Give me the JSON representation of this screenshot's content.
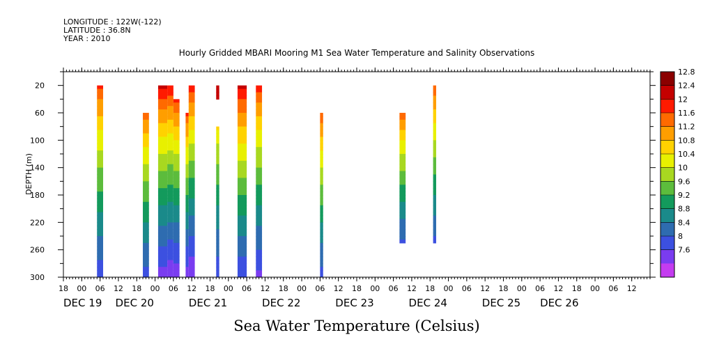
{
  "header": {
    "longitude": "LONGITUDE : 122W(-122)",
    "latitude": "LATITUDE : 36.8N",
    "year": "YEAR : 2010"
  },
  "chart_data": {
    "type": "heatmap",
    "title": "Hourly Gridded MBARI Mooring M1 Sea Water Temperature and Salinity Observations",
    "xlabel": "Sea Water Temperature (Celsius)",
    "ylabel": "DEPTH (m)",
    "x_units": "hours since DEC 19 00:00",
    "xlim": [
      -6,
      186
    ],
    "ylim": [
      300,
      0
    ],
    "y_ticks": [
      20,
      60,
      100,
      140,
      180,
      220,
      260,
      300
    ],
    "hour_ticks": [
      {
        "h": -6,
        "label": "18"
      },
      {
        "h": 0,
        "label": "00"
      },
      {
        "h": 6,
        "label": "06"
      },
      {
        "h": 12,
        "label": "12"
      },
      {
        "h": 18,
        "label": "18"
      },
      {
        "h": 24,
        "label": "00"
      },
      {
        "h": 30,
        "label": "06"
      },
      {
        "h": 36,
        "label": "12"
      },
      {
        "h": 42,
        "label": "18"
      },
      {
        "h": 48,
        "label": "00"
      },
      {
        "h": 54,
        "label": "06"
      },
      {
        "h": 60,
        "label": "12"
      },
      {
        "h": 66,
        "label": "18"
      },
      {
        "h": 72,
        "label": "00"
      },
      {
        "h": 78,
        "label": "06"
      },
      {
        "h": 84,
        "label": "12"
      },
      {
        "h": 90,
        "label": "18"
      },
      {
        "h": 96,
        "label": "00"
      },
      {
        "h": 102,
        "label": "06"
      },
      {
        "h": 108,
        "label": "12"
      },
      {
        "h": 114,
        "label": "18"
      },
      {
        "h": 120,
        "label": "00"
      },
      {
        "h": 126,
        "label": "06"
      },
      {
        "h": 132,
        "label": "12"
      },
      {
        "h": 138,
        "label": "18"
      },
      {
        "h": 144,
        "label": "00"
      },
      {
        "h": 150,
        "label": "06"
      },
      {
        "h": 156,
        "label": "12"
      },
      {
        "h": 162,
        "label": "18"
      },
      {
        "h": 168,
        "label": "00"
      },
      {
        "h": 174,
        "label": "06"
      },
      {
        "h": 180,
        "label": "12"
      }
    ],
    "day_labels": [
      {
        "h": -6,
        "label": "DEC 19"
      },
      {
        "h": 11,
        "label": "DEC 20"
      },
      {
        "h": 35,
        "label": "DEC 21"
      },
      {
        "h": 59,
        "label": "DEC 22"
      },
      {
        "h": 83,
        "label": "DEC 23"
      },
      {
        "h": 107,
        "label": "DEC 24"
      },
      {
        "h": 131,
        "label": "DEC 25"
      },
      {
        "h": 150,
        "label": "DEC 26"
      }
    ],
    "colorbar": {
      "levels": [
        "12.8",
        "12.4",
        "12",
        "11.6",
        "11.2",
        "10.8",
        "10.4",
        "10",
        "9.6",
        "9.2",
        "8.8",
        "8.4",
        "8",
        "7.6"
      ],
      "colors": [
        "#8b0000",
        "#c40000",
        "#ff1a00",
        "#ff6a00",
        "#ff9e00",
        "#ffd200",
        "#e8f000",
        "#a8d820",
        "#5cbc3c",
        "#139a5c",
        "#1a8a8a",
        "#2e6cb0",
        "#3c50e0",
        "#7a3cf0",
        "#c43cf0"
      ]
    },
    "series": [
      {
        "t0": 5,
        "t1": 7,
        "d0": 20,
        "d1": 300,
        "top": 12.2,
        "bottom": 8.1
      },
      {
        "t0": 20,
        "t1": 22,
        "d0": 60,
        "d1": 300,
        "top": 12.0,
        "bottom": 8.2
      },
      {
        "t0": 25,
        "t1": 28,
        "d0": 20,
        "d1": 300,
        "top": 12.6,
        "bottom": 7.8
      },
      {
        "t0": 28,
        "t1": 30,
        "d0": 20,
        "d1": 300,
        "top": 12.5,
        "bottom": 7.7
      },
      {
        "t0": 30,
        "t1": 32,
        "d0": 40,
        "d1": 300,
        "top": 12.3,
        "bottom": 7.7
      },
      {
        "t0": 34,
        "t1": 35,
        "d0": 60,
        "d1": 300,
        "top": 12.2,
        "bottom": 7.8
      },
      {
        "t0": 35,
        "t1": 37,
        "d0": 20,
        "d1": 300,
        "top": 12.4,
        "bottom": 7.6
      },
      {
        "t0": 44,
        "t1": 45,
        "d0": 20,
        "d1": 40,
        "top": 12.5,
        "bottom": 12.5
      },
      {
        "t0": 44,
        "t1": 45,
        "d0": 80,
        "d1": 300,
        "top": 11.0,
        "bottom": 8.1
      },
      {
        "t0": 51,
        "t1": 54,
        "d0": 20,
        "d1": 300,
        "top": 12.7,
        "bottom": 8.0
      },
      {
        "t0": 57,
        "t1": 59,
        "d0": 20,
        "d1": 300,
        "top": 12.3,
        "bottom": 7.9
      },
      {
        "t0": 78,
        "t1": 79,
        "d0": 60,
        "d1": 300,
        "top": 12.1,
        "bottom": 8.2
      },
      {
        "t0": 104,
        "t1": 106,
        "d0": 60,
        "d1": 250,
        "top": 12.0,
        "bottom": 8.3
      },
      {
        "t0": 115,
        "t1": 116,
        "d0": 20,
        "d1": 250,
        "top": 12.1,
        "bottom": 8.3
      }
    ]
  }
}
